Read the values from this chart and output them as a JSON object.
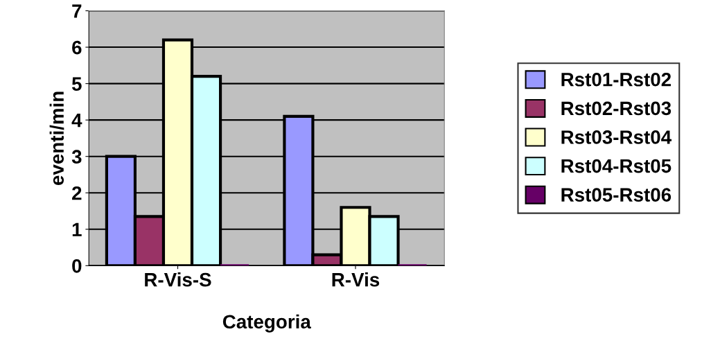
{
  "chart_data": {
    "type": "bar",
    "xlabel": "Categoria",
    "ylabel": "eventi/min",
    "categories": [
      "R-Vis-S",
      "R-Vis"
    ],
    "series": [
      {
        "name": "Rst01-Rst02",
        "color": "#9999ff",
        "values": [
          3.0,
          4.1
        ]
      },
      {
        "name": "Rst02-Rst03",
        "color": "#993366",
        "values": [
          1.35,
          0.3
        ]
      },
      {
        "name": "Rst03-Rst04",
        "color": "#ffffcc",
        "values": [
          6.2,
          1.6
        ]
      },
      {
        "name": "Rst04-Rst05",
        "color": "#ccffff",
        "values": [
          5.2,
          1.35
        ]
      },
      {
        "name": "Rst05-Rst06",
        "color": "#660066",
        "values": [
          0,
          0
        ]
      }
    ],
    "ylim": [
      0,
      7
    ],
    "yticks": [
      0,
      1,
      2,
      3,
      4,
      5,
      6,
      7
    ],
    "grid": "y",
    "legend": "right"
  }
}
